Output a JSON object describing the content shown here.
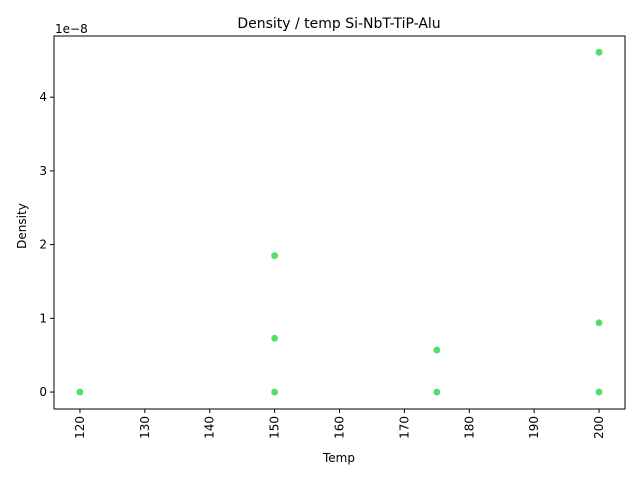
{
  "chart_data": {
    "type": "scatter",
    "title": "Density / temp Si-NbT-TiP-Alu",
    "xlabel": "Temp",
    "ylabel": "Density",
    "y_offset_label": "1e−8",
    "y_scale_exponent": -8,
    "xlim": [
      116,
      204
    ],
    "ylim": [
      -2.3e-09,
      4.83e-08
    ],
    "x_ticks": [
      120,
      130,
      140,
      150,
      160,
      170,
      180,
      190,
      200
    ],
    "x_tick_labels": [
      "120",
      "130",
      "140",
      "150",
      "160",
      "170",
      "180",
      "190",
      "200"
    ],
    "y_ticks": [
      0,
      1e-08,
      2e-08,
      3e-08,
      4e-08
    ],
    "y_tick_labels": [
      "0",
      "1",
      "2",
      "3",
      "4"
    ],
    "x_tick_rotation": "vertical",
    "grid": false,
    "legend": "none",
    "marker_color": "#4ee06a",
    "series": [
      {
        "x": [
          120,
          120,
          150,
          150,
          150,
          175,
          175,
          200,
          200,
          200
        ],
        "y": [
          0,
          0,
          1.85e-08,
          7.3e-09,
          0,
          5.7e-09,
          0,
          4.61e-08,
          9.4e-09,
          0
        ]
      }
    ]
  }
}
